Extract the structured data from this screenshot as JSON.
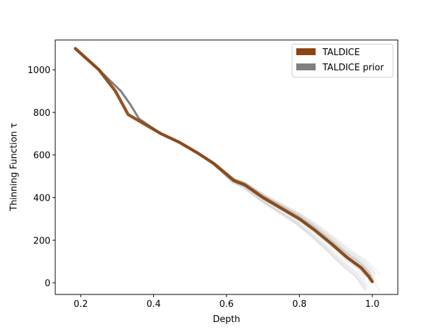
{
  "chart_data": {
    "type": "line",
    "title": "",
    "xlabel": "Depth",
    "ylabel": "Thinning Function τ",
    "xlim": [
      0.13,
      1.07
    ],
    "ylim": [
      -55,
      1140
    ],
    "xticks": [
      0.2,
      0.4,
      0.6,
      0.8,
      1.0
    ],
    "xtick_labels": [
      "0.2",
      "0.4",
      "0.6",
      "0.8",
      "1.0"
    ],
    "yticks": [
      0,
      200,
      400,
      600,
      800,
      1000
    ],
    "ytick_labels": [
      "0",
      "200",
      "400",
      "600",
      "800",
      "1000"
    ],
    "grid": false,
    "legend_position": "top-right",
    "colors": {
      "taldice": "#8b4513",
      "prior": "#808080"
    },
    "series": [
      {
        "name": "TALDICE",
        "color": "#8b4513",
        "points": [
          [
            0.185,
            1100
          ],
          [
            0.25,
            1000
          ],
          [
            0.295,
            900
          ],
          [
            0.33,
            790
          ],
          [
            0.37,
            750
          ],
          [
            0.42,
            700
          ],
          [
            0.47,
            660
          ],
          [
            0.52,
            610
          ],
          [
            0.565,
            560
          ],
          [
            0.62,
            480
          ],
          [
            0.65,
            460
          ],
          [
            0.7,
            400
          ],
          [
            0.75,
            350
          ],
          [
            0.8,
            300
          ],
          [
            0.84,
            250
          ],
          [
            0.89,
            180
          ],
          [
            0.93,
            120
          ],
          [
            0.97,
            70
          ],
          [
            0.99,
            30
          ],
          [
            1.0,
            5
          ]
        ]
      },
      {
        "name": "TALDICE prior",
        "color": "#808080",
        "points": [
          [
            0.185,
            1100
          ],
          [
            0.25,
            1000
          ],
          [
            0.31,
            900
          ],
          [
            0.335,
            840
          ],
          [
            0.36,
            770
          ],
          [
            0.42,
            700
          ],
          [
            0.47,
            660
          ],
          [
            0.52,
            610
          ],
          [
            0.565,
            560
          ],
          [
            0.62,
            480
          ],
          [
            0.65,
            460
          ],
          [
            0.7,
            400
          ],
          [
            0.75,
            350
          ],
          [
            0.8,
            300
          ],
          [
            0.84,
            250
          ],
          [
            0.89,
            180
          ],
          [
            0.93,
            120
          ],
          [
            0.97,
            70
          ],
          [
            0.99,
            30
          ],
          [
            1.0,
            5
          ]
        ]
      }
    ]
  }
}
